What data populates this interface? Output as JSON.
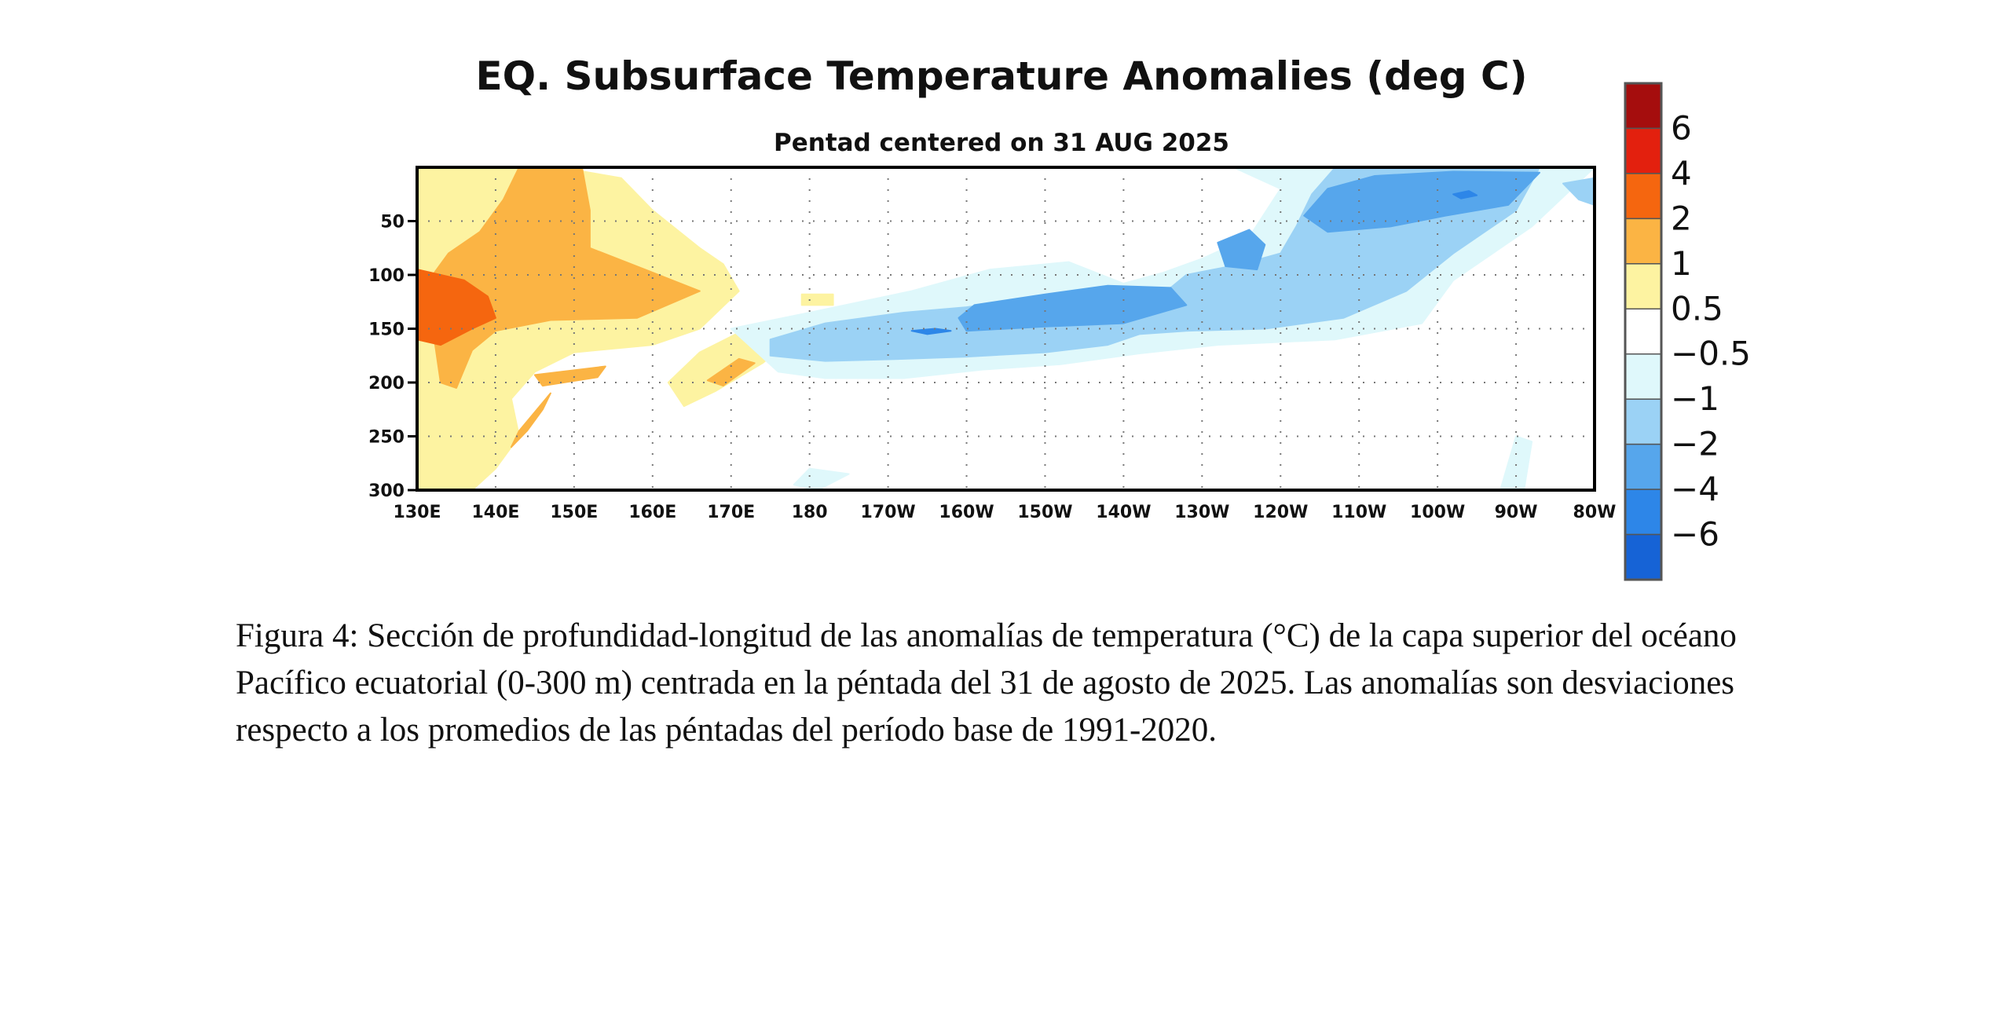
{
  "chart_data": {
    "type": "heatmap",
    "title": "EQ. Subsurface Temperature Anomalies (deg C)",
    "subtitle": "Pentad centered on 31 AUG 2025",
    "xlabel": "",
    "ylabel": "",
    "x_ticks": [
      "130E",
      "140E",
      "150E",
      "160E",
      "170E",
      "180",
      "170W",
      "160W",
      "150W",
      "140W",
      "130W",
      "120W",
      "110W",
      "100W",
      "90W",
      "80W"
    ],
    "y_ticks": [
      50,
      100,
      150,
      200,
      250,
      300
    ],
    "x_range_deg_east": [
      130,
      280
    ],
    "y_range_depth_m": [
      0,
      300
    ],
    "grid": "dotted",
    "legend": {
      "position": "right",
      "labels": [
        "6",
        "4",
        "2",
        "1",
        "0.5",
        "−0.5",
        "−1",
        "−2",
        "−4",
        "−6"
      ],
      "colors": [
        "#a50d0d",
        "#e3200e",
        "#f5660f",
        "#fbb444",
        "#fdf3a1",
        "#ffffff",
        "#dff8fb",
        "#9bd2f5",
        "#56a6ec",
        "#2d86e8",
        "#1663d6"
      ]
    },
    "regions": [
      {
        "level": 1,
        "color": "#fdf3a1",
        "points": [
          [
            130,
            0
          ],
          [
            148,
            0
          ],
          [
            156,
            10
          ],
          [
            160,
            40
          ],
          [
            166,
            75
          ],
          [
            169,
            90
          ],
          [
            171,
            115
          ],
          [
            166,
            150
          ],
          [
            160,
            165
          ],
          [
            150,
            172
          ],
          [
            145,
            190
          ],
          [
            142,
            215
          ],
          [
            143,
            250
          ],
          [
            140,
            280
          ],
          [
            137,
            300
          ],
          [
            130,
            300
          ]
        ]
      },
      {
        "level": 1,
        "color": "#fdf3a1",
        "points": [
          [
            166,
            172
          ],
          [
            172,
            150
          ],
          [
            179,
            152
          ],
          [
            174,
            182
          ],
          [
            168,
            208
          ],
          [
            164,
            222
          ],
          [
            162,
            200
          ]
        ]
      },
      {
        "level": 1,
        "color": "#fdf3a1",
        "points": [
          [
            179,
            118
          ],
          [
            183,
            118
          ],
          [
            183,
            128
          ],
          [
            179,
            128
          ]
        ]
      },
      {
        "level": 2,
        "color": "#fbb444",
        "points": [
          [
            134,
            80
          ],
          [
            138,
            60
          ],
          [
            141,
            30
          ],
          [
            143,
            0
          ],
          [
            151,
            0
          ],
          [
            152,
            40
          ],
          [
            152,
            75
          ],
          [
            159,
            95
          ],
          [
            166,
            115
          ],
          [
            158,
            140
          ],
          [
            147,
            142
          ],
          [
            140,
            152
          ],
          [
            137,
            170
          ],
          [
            135,
            205
          ],
          [
            133,
            200
          ],
          [
            132,
            150
          ],
          [
            131,
            110
          ]
        ]
      },
      {
        "level": 2,
        "color": "#fbb444",
        "points": [
          [
            145,
            193
          ],
          [
            154,
            185
          ],
          [
            153,
            195
          ],
          [
            146,
            203
          ]
        ]
      },
      {
        "level": 2,
        "color": "#fbb444",
        "points": [
          [
            146,
            225
          ],
          [
            147,
            210
          ],
          [
            143,
            245
          ],
          [
            142,
            260
          ],
          [
            144,
            245
          ]
        ]
      },
      {
        "level": 2,
        "color": "#fbb444",
        "points": [
          [
            167,
            198
          ],
          [
            171,
            178
          ],
          [
            173,
            182
          ],
          [
            169,
            203
          ]
        ]
      },
      {
        "level": 4,
        "color": "#f5660f",
        "points": [
          [
            130,
            95
          ],
          [
            136,
            105
          ],
          [
            139,
            120
          ],
          [
            140,
            140
          ],
          [
            137,
            150
          ],
          [
            133,
            165
          ],
          [
            130,
            160
          ]
        ]
      },
      {
        "level": -0.5,
        "color": "#dff8fb",
        "points": [
          [
            170,
            150
          ],
          [
            180,
            135
          ],
          [
            193,
            115
          ],
          [
            203,
            95
          ],
          [
            213,
            88
          ],
          [
            220,
            108
          ],
          [
            225,
            98
          ],
          [
            230,
            85
          ],
          [
            236,
            65
          ],
          [
            240,
            20
          ],
          [
            234,
            0
          ],
          [
            280,
            0
          ],
          [
            272,
            55
          ],
          [
            262,
            105
          ],
          [
            258,
            145
          ],
          [
            247,
            160
          ],
          [
            232,
            165
          ],
          [
            222,
            173
          ],
          [
            212,
            183
          ],
          [
            202,
            188
          ],
          [
            192,
            196
          ],
          [
            182,
            196
          ],
          [
            176,
            190
          ]
        ]
      },
      {
        "level": -0.5,
        "color": "#dff8fb",
        "points": [
          [
            180,
            280
          ],
          [
            185,
            285
          ],
          [
            181,
            300
          ],
          [
            178,
            295
          ]
        ]
      },
      {
        "level": -0.5,
        "color": "#dff8fb",
        "points": [
          [
            270,
            250
          ],
          [
            272,
            255
          ],
          [
            271,
            300
          ],
          [
            268,
            300
          ]
        ]
      },
      {
        "level": -1,
        "color": "#9bd2f5",
        "points": [
          [
            175,
            160
          ],
          [
            182,
            145
          ],
          [
            192,
            135
          ],
          [
            200,
            130
          ],
          [
            210,
            120
          ],
          [
            218,
            115
          ],
          [
            225,
            118
          ],
          [
            228,
            100
          ],
          [
            235,
            90
          ],
          [
            240,
            80
          ],
          [
            242,
            55
          ],
          [
            244,
            25
          ],
          [
            247,
            0
          ],
          [
            273,
            0
          ],
          [
            270,
            40
          ],
          [
            262,
            80
          ],
          [
            256,
            115
          ],
          [
            248,
            140
          ],
          [
            238,
            150
          ],
          [
            228,
            152
          ],
          [
            222,
            155
          ],
          [
            218,
            165
          ],
          [
            210,
            172
          ],
          [
            200,
            176
          ],
          [
            192,
            178
          ],
          [
            182,
            180
          ],
          [
            175,
            175
          ]
        ]
      },
      {
        "level": -1,
        "color": "#9bd2f5",
        "points": [
          [
            276,
            15
          ],
          [
            280,
            10
          ],
          [
            280,
            35
          ],
          [
            278,
            30
          ]
        ]
      },
      {
        "level": -2,
        "color": "#56a6ec",
        "points": [
          [
            199,
            140
          ],
          [
            201,
            128
          ],
          [
            210,
            118
          ],
          [
            218,
            110
          ],
          [
            226,
            112
          ],
          [
            228,
            128
          ],
          [
            220,
            145
          ],
          [
            210,
            148
          ],
          [
            200,
            152
          ]
        ]
      },
      {
        "level": -2,
        "color": "#56a6ec",
        "points": [
          [
            246,
            20
          ],
          [
            252,
            8
          ],
          [
            262,
            4
          ],
          [
            273,
            5
          ],
          [
            269,
            35
          ],
          [
            261,
            45
          ],
          [
            254,
            55
          ],
          [
            246,
            60
          ],
          [
            243,
            45
          ]
        ]
      },
      {
        "level": -2,
        "color": "#56a6ec",
        "points": [
          [
            232,
            70
          ],
          [
            236,
            58
          ],
          [
            238,
            72
          ],
          [
            237,
            95
          ],
          [
            233,
            92
          ]
        ]
      },
      {
        "level": -4,
        "color": "#2d86e8",
        "points": [
          [
            193,
            152
          ],
          [
            196,
            150
          ],
          [
            198,
            152
          ],
          [
            195,
            155
          ]
        ]
      },
      {
        "level": -4,
        "color": "#2d86e8",
        "points": [
          [
            262,
            25
          ],
          [
            264,
            22
          ],
          [
            265,
            26
          ],
          [
            263,
            29
          ]
        ]
      }
    ]
  },
  "caption": "Figura 4: Sección de profundidad-longitud de las anomalías de temperatura (°C) de la capa superior del océano Pacífico ecuatorial (0-300 m) centrada en la péntada del 31 de agosto de 2025. Las anomalías son desviaciones respecto a los promedios de las péntadas del período base de 1991-2020."
}
